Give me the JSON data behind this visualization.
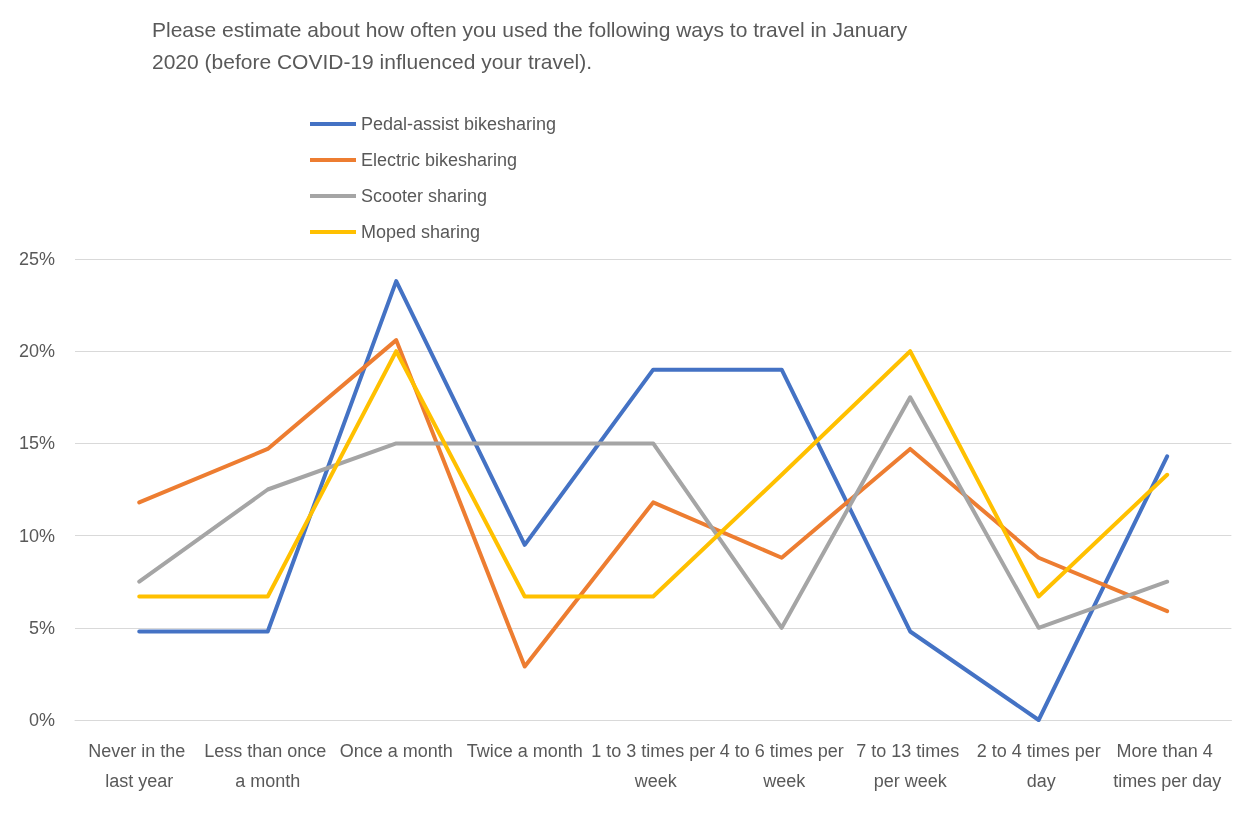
{
  "chart_data": {
    "type": "line",
    "title": "Please estimate about how often you used the following ways to travel in January 2020 (before COVID-19 influenced your travel).",
    "categories": [
      "Never in the last year",
      "Less than once a month",
      "Once a month",
      "Twice a month",
      "1 to 3 times per week",
      "4 to 6 times per week",
      "7 to 13 times per week",
      "2 to 4 times per day",
      "More than 4 times per day"
    ],
    "series": [
      {
        "name": "Pedal-assist bikesharing",
        "color": "#4472c4",
        "values": [
          4.8,
          4.8,
          23.8,
          9.5,
          19,
          19,
          4.8,
          0,
          14.3
        ]
      },
      {
        "name": "Electric bikesharing",
        "color": "#ed7d31",
        "values": [
          11.8,
          14.7,
          20.6,
          2.9,
          11.8,
          8.8,
          14.7,
          8.8,
          5.9
        ]
      },
      {
        "name": "Scooter sharing",
        "color": "#a5a5a5",
        "values": [
          7.5,
          12.5,
          15,
          15,
          15,
          5,
          17.5,
          5,
          7.5
        ]
      },
      {
        "name": "Moped sharing",
        "color": "#ffc000",
        "values": [
          6.7,
          6.7,
          20,
          6.7,
          6.7,
          13.3,
          20,
          6.7,
          13.3
        ]
      }
    ],
    "ylim": [
      0,
      25
    ],
    "yticks": [
      {
        "value": 0,
        "label": "0%"
      },
      {
        "value": 5,
        "label": "5%"
      },
      {
        "value": 10,
        "label": "10%"
      },
      {
        "value": 15,
        "label": "15%"
      },
      {
        "value": 20,
        "label": "20%"
      },
      {
        "value": 25,
        "label": "25%"
      }
    ],
    "grid": "y",
    "legend": "top",
    "marker": "none",
    "line_style": "solid"
  }
}
